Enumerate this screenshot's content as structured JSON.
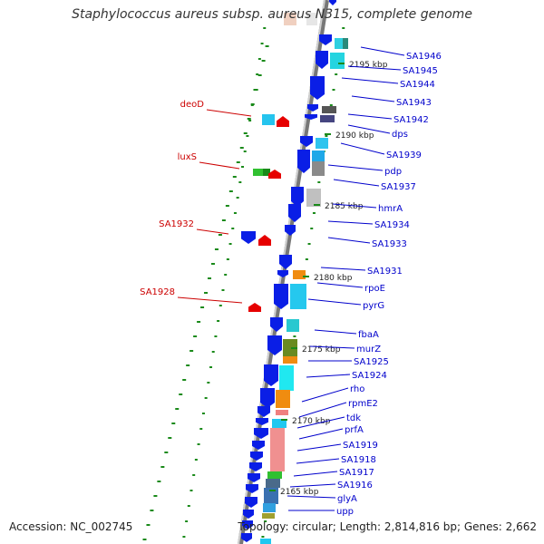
{
  "header": {
    "title": "Staphylococcus aureus subsp. aureus N315, complete genome"
  },
  "footer": {
    "accession": "Accession: NC_002745",
    "topology": "Topology: circular; Length: 2,814,816 bp; Genes: 2,662"
  },
  "colors": {
    "forward_gene": "#0a1ee6",
    "reverse_gene_highlight": "#e60000",
    "backbone": "#8a8a8a",
    "tick_green": "#1a8a1a",
    "label_blue": "#0000cc",
    "label_red": "#cc0000"
  },
  "kbp_marks": [
    "2195 kbp",
    "2190 kbp",
    "2185 kbp",
    "2180 kbp",
    "2175 kbp",
    "2170 kbp",
    "2165 kbp"
  ],
  "right_labels": [
    "SA1946",
    "SA1945",
    "SA1944",
    "SA1943",
    "SA1942",
    "dps",
    "SA1939",
    "pdp",
    "SA1937",
    "hmrA",
    "SA1934",
    "SA1933",
    "SA1931",
    "rpoE",
    "pyrG",
    "fbaA",
    "murZ",
    "SA1925",
    "SA1924",
    "rho",
    "rpmE2",
    "tdk",
    "prfA",
    "SA1919",
    "SA1918",
    "SA1917",
    "SA1916",
    "glyA",
    "upp"
  ],
  "left_labels": [
    "deoD",
    "luxS",
    "SA1932",
    "SA1928"
  ]
}
